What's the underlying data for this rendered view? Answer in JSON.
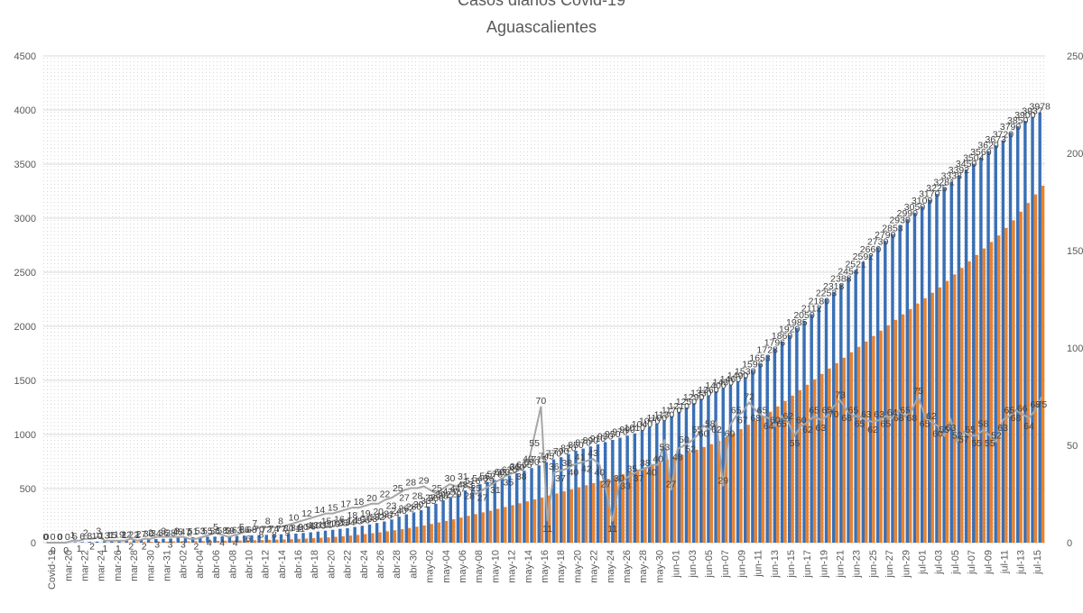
{
  "chart_data": {
    "type": "bar",
    "title": "Casos diarios Covid-19",
    "subtitle": "Aguascalientes",
    "xlabel": "",
    "ylabel": "",
    "ylim": [
      0,
      4500
    ],
    "y2lim": [
      0,
      250
    ],
    "yticks": [
      0,
      500,
      1000,
      1500,
      2000,
      2500,
      3000,
      3500,
      4000,
      4500
    ],
    "y2ticks": [
      0,
      50,
      100,
      150,
      200,
      250
    ],
    "grid": true,
    "legend": "bottom",
    "x_tick_labels": [
      "Covid-19",
      "mar-20",
      "mar-22",
      "mar-24",
      "mar-26",
      "mar-28",
      "mar-30",
      "mar-31",
      "abr-02",
      "abr-04",
      "abr-06",
      "abr-08",
      "abr-10",
      "abr-12",
      "abr-14",
      "abr-16",
      "abr-18",
      "abr-20",
      "abr-22",
      "abr-24",
      "abr-26",
      "abr-28",
      "abr-30",
      "may-02",
      "may-04",
      "may-06",
      "may-08",
      "may-10",
      "may-12",
      "may-14",
      "may-16",
      "may-18",
      "may-20",
      "may-22",
      "may-24",
      "may-26",
      "may-28",
      "may-30",
      "jun-01",
      "jun-03",
      "jun-05",
      "jun-07",
      "jun-09",
      "jun-11",
      "jun-13",
      "jun-15",
      "jun-17",
      "jun-19",
      "jun-21",
      "jun-23",
      "jun-25",
      "jun-27",
      "jun-29",
      "jul-01",
      "jul-03",
      "jul-05",
      "jul-07",
      "jul-09",
      "jul-11",
      "jul-13",
      "jul-15"
    ],
    "series": [
      {
        "name": "",
        "axis": "left",
        "render": "bar",
        "color": "#3a6fb5",
        "values": [
          0,
          0,
          0,
          0,
          5,
          6,
          8,
          10,
          13,
          15,
          19,
          22,
          22,
          27,
          30,
          34,
          36,
          38,
          45,
          47,
          51,
          53,
          55,
          56,
          58,
          59,
          63,
          66,
          68,
          70,
          72,
          74,
          77,
          80,
          84,
          90,
          96,
          103,
          111,
          119,
          128,
          134,
          145,
          156,
          168,
          182,
          196,
          214,
          240,
          262,
          280,
          301,
          335,
          360,
          392,
          420,
          447,
          483,
          516,
          540,
          562,
          578,
          600,
          620,
          640,
          665,
          690,
          715,
          745,
          770,
          790,
          820,
          850,
          870,
          890,
          910,
          930,
          950,
          970,
          990,
          1010,
          1040,
          1070,
          1100,
          1130,
          1170,
          1210,
          1250,
          1290,
          1330,
          1360,
          1400,
          1430,
          1460,
          1490,
          1530,
          1596,
          1653,
          1728,
          1796,
          1860,
          1920,
          1985,
          2050,
          2112,
          2180,
          2253,
          2318,
          2388,
          2454,
          2521,
          2592,
          2660,
          2730,
          2790,
          2853,
          2930,
          2990,
          3050,
          3109,
          3170,
          3225,
          3281,
          3338,
          3392,
          3450,
          3504,
          3560,
          3620,
          3673,
          3720,
          3790,
          3850,
          3900,
          3937,
          3978
        ],
        "labels": [
          0,
          0,
          0,
          0,
          5,
          6,
          8,
          10,
          13,
          15,
          19,
          22,
          22,
          27,
          30,
          34,
          36,
          38,
          45,
          47,
          51,
          53,
          55,
          56,
          58,
          59,
          63,
          66,
          68,
          70,
          72,
          74,
          77,
          80,
          84,
          90,
          96,
          103,
          111,
          119,
          128,
          134,
          145,
          156,
          168,
          182,
          196,
          214,
          240,
          262,
          280,
          301,
          335,
          360,
          392,
          420,
          447,
          483,
          516,
          540,
          562,
          578,
          600,
          620,
          640,
          665,
          690,
          715,
          745,
          770,
          790,
          820,
          850,
          870,
          890,
          910,
          930,
          950,
          970,
          990,
          1010,
          1040,
          1070,
          1100,
          1130,
          1170,
          1210,
          1250,
          1290,
          1330,
          1360,
          1400,
          1430,
          1460,
          1490,
          1530,
          1596,
          1653,
          1728,
          1796,
          1860,
          1920,
          1985,
          2050,
          2112,
          2180,
          2253,
          2318,
          2388,
          2454,
          2521,
          2592,
          2660,
          2730,
          2790,
          2853,
          2930,
          2990,
          3050,
          3109,
          3170,
          3225,
          3281,
          3338,
          3392,
          3450,
          3504,
          3560,
          3620,
          3673,
          3720,
          3790,
          3850,
          3900,
          3937,
          3978
        ]
      },
      {
        "name": "",
        "axis": "left",
        "render": "bar",
        "color": "#e8832f",
        "values": [
          0,
          0,
          0,
          0,
          0,
          0,
          1,
          1,
          2,
          3,
          3,
          5,
          6,
          7,
          8,
          9,
          10,
          11,
          12,
          13,
          14,
          15,
          16,
          17,
          18,
          19,
          20,
          21,
          22,
          24,
          26,
          28,
          30,
          32,
          35,
          38,
          41,
          45,
          49,
          54,
          60,
          66,
          72,
          80,
          88,
          96,
          105,
          115,
          125,
          136,
          148,
          160,
          173,
          187,
          201,
          216,
          232,
          248,
          264,
          280,
          296,
          313,
          330,
          347,
          364,
          382,
          400,
          418,
          436,
          455,
          474,
          493,
          512,
          531,
          551,
          571,
          591,
          612,
          633,
          654,
          676,
          698,
          720,
          743,
          766,
          789,
          812,
          836,
          860,
          885,
          910,
          940,
          975,
          1010,
          1050,
          1090,
          1130,
          1170,
          1210,
          1260,
          1310,
          1360,
          1410,
          1460,
          1510,
          1560,
          1610,
          1660,
          1710,
          1760,
          1810,
          1860,
          1910,
          1960,
          2010,
          2060,
          2110,
          2160,
          2210,
          2260,
          2310,
          2360,
          2420,
          2480,
          2540,
          2600,
          2660,
          2720,
          2780,
          2840,
          2910,
          2980,
          3060,
          3140,
          3220,
          3300,
          3400,
          3500,
          3600,
          3700,
          3850
        ]
      },
      {
        "name": "",
        "axis": "right",
        "render": "line",
        "color": "#a6a6a6",
        "values": [
          0,
          0,
          0,
          0,
          1,
          1,
          2,
          2,
          3,
          1,
          1,
          1,
          1,
          2,
          1,
          2,
          2,
          3,
          3,
          3,
          3,
          3,
          2,
          2,
          3,
          4,
          5,
          4,
          3,
          4,
          5,
          6,
          7,
          8,
          8,
          8,
          8,
          9,
          10,
          11,
          12,
          13,
          14,
          15,
          15,
          16,
          17,
          18,
          18,
          19,
          20,
          20,
          22,
          23,
          25,
          27,
          28,
          28,
          29,
          27,
          25,
          28,
          30,
          29,
          31,
          28,
          25,
          27,
          29,
          31,
          33,
          35,
          36,
          38,
          40,
          55,
          70,
          11,
          36,
          37,
          38,
          40,
          41,
          42,
          43,
          40,
          27,
          11,
          30,
          33,
          35,
          37,
          38,
          40,
          40,
          53,
          27,
          48,
          50,
          52,
          55,
          60,
          58,
          62,
          29,
          60,
          65,
          67,
          72,
          68,
          65,
          64,
          60,
          65,
          62,
          55,
          60,
          62,
          65,
          63,
          65,
          70,
          73,
          68,
          65,
          65,
          63,
          62,
          63,
          65,
          64,
          68,
          65,
          68,
          75,
          65,
          62,
          60,
          55,
          63,
          52,
          57,
          55,
          55,
          58,
          55,
          52,
          63,
          65,
          68,
          66,
          64,
          68,
          75
        ]
      }
    ],
    "annotations": [
      "70",
      "11",
      "29",
      "75",
      "81",
      "72",
      "68",
      "63",
      "52",
      "57",
      "53",
      "55",
      "27"
    ]
  }
}
